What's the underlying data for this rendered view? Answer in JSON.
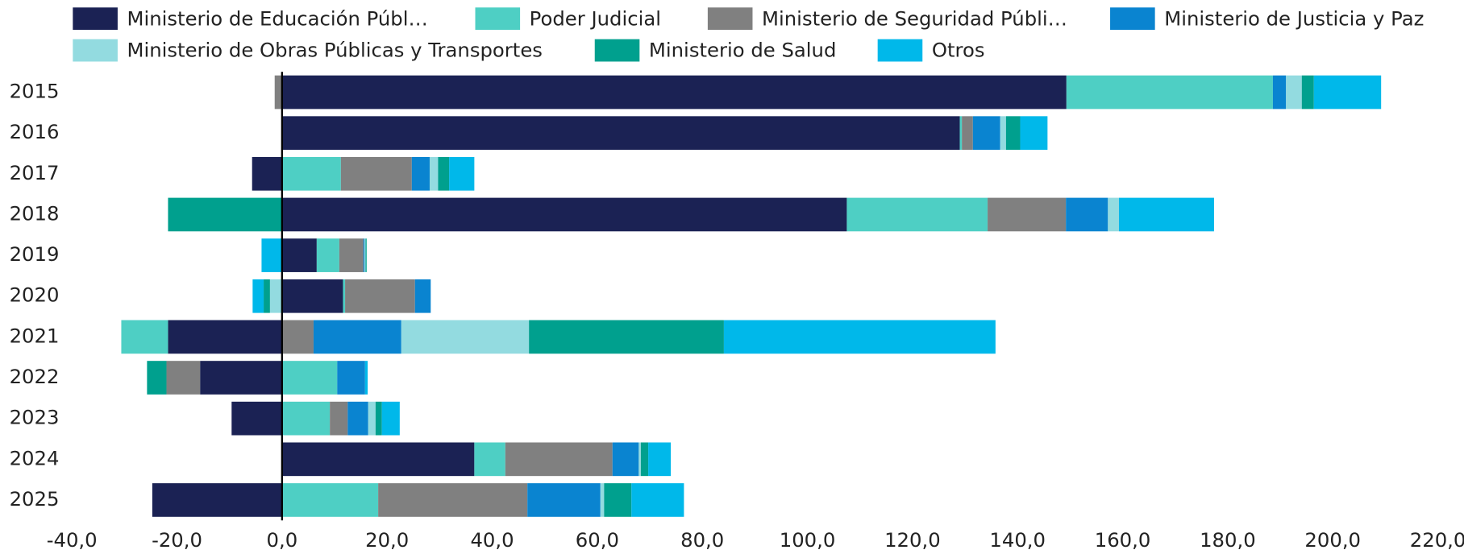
{
  "chart_data": {
    "type": "bar",
    "orientation": "horizontal",
    "stacked": true,
    "categories": [
      "2015",
      "2016",
      "2017",
      "2018",
      "2019",
      "2020",
      "2021",
      "2022",
      "2023",
      "2024",
      "2025"
    ],
    "series": [
      {
        "name": "Ministerio de Educación Públ…",
        "color": "#1b2254",
        "values": [
          149.3,
          129.0,
          -5.7,
          107.5,
          6.6,
          11.6,
          -21.7,
          -15.6,
          -9.6,
          36.6,
          -24.7
        ]
      },
      {
        "name": "Poder Judicial",
        "color": "#4ecfc4",
        "values": [
          39.3,
          0.4,
          11.2,
          26.8,
          4.3,
          0.4,
          -8.9,
          10.5,
          9.1,
          5.9,
          18.3
        ]
      },
      {
        "name": "Ministerio de Seguridad Públi…",
        "color": "#808080",
        "values": [
          -1.4,
          2.1,
          13.5,
          14.9,
          4.6,
          13.3,
          6.0,
          -6.4,
          3.4,
          20.4,
          28.4
        ]
      },
      {
        "name": "Ministerio de Justicia y Paz",
        "color": "#0a84d0",
        "values": [
          2.5,
          5.2,
          3.4,
          8.0,
          0.2,
          3.0,
          16.7,
          5.3,
          3.9,
          5.0,
          13.9
        ]
      },
      {
        "name": "Ministerio de Obras Públicas y Transportes",
        "color": "#93dbe0",
        "values": [
          3.0,
          1.1,
          1.6,
          2.1,
          0.2,
          -2.3,
          24.3,
          0,
          1.4,
          0.4,
          0.7
        ]
      },
      {
        "name": "Ministerio de Salud",
        "color": "#00a08e",
        "values": [
          2.3,
          2.7,
          2.1,
          -21.7,
          0.2,
          -1.2,
          37.1,
          -3.7,
          1.2,
          1.4,
          5.2
        ]
      },
      {
        "name": "Otros",
        "color": "#00b8ea",
        "values": [
          12.8,
          5.2,
          4.8,
          18.1,
          -3.9,
          -2.1,
          51.7,
          0.5,
          3.4,
          4.3,
          10.0
        ]
      }
    ],
    "xlim": [
      -40,
      220
    ],
    "xticks": [
      {
        "value": -40,
        "label": "-40,0"
      },
      {
        "value": -20,
        "label": "-20,0"
      },
      {
        "value": 0,
        "label": "0,0"
      },
      {
        "value": 20,
        "label": "20,0"
      },
      {
        "value": 40,
        "label": "40,0"
      },
      {
        "value": 60,
        "label": "60,0"
      },
      {
        "value": 80,
        "label": "80,0"
      },
      {
        "value": 100,
        "label": "100,0"
      },
      {
        "value": 120,
        "label": "120,0"
      },
      {
        "value": 140,
        "label": "140,0"
      },
      {
        "value": 160,
        "label": "160,0"
      },
      {
        "value": 180,
        "label": "180,0"
      },
      {
        "value": 200,
        "label": "200,0"
      },
      {
        "value": 220,
        "label": "220,0"
      }
    ],
    "legend": "top"
  }
}
